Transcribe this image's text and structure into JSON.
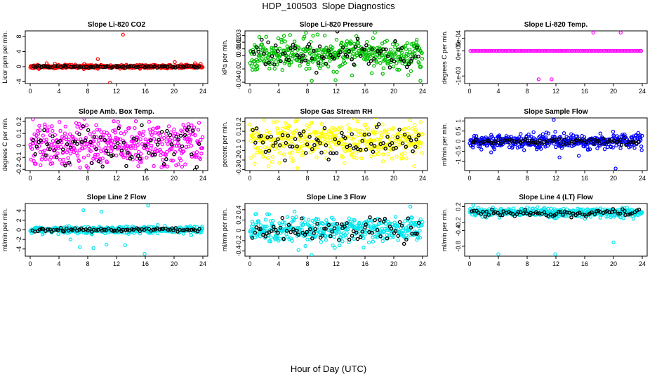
{
  "page": {
    "title": "HDP_100503  Slope Diagnostics",
    "xlabel": "Hour of Day (UTC)"
  },
  "chart_data": [
    {
      "type": "scatter",
      "title": "Slope Li-820 CO2",
      "ylabel": "Licor ppm per min.",
      "xlim": [
        0,
        24
      ],
      "xticks": [
        0,
        4,
        8,
        12,
        16,
        20,
        24
      ],
      "ylim": [
        -4.5,
        9.5
      ],
      "yticks": [
        -4,
        0,
        4,
        8
      ],
      "color": "#ff0000",
      "base": 0,
      "spread": 0.25,
      "n": 420,
      "seed": 11,
      "points_other": [
        {
          "x": 12.9,
          "y": 8.5
        },
        {
          "x": 11.1,
          "y": -4.3
        },
        {
          "x": 9.4,
          "y": 2.0
        },
        {
          "x": 20.1,
          "y": 1.2
        },
        {
          "x": 22.9,
          "y": 0.9
        },
        {
          "x": 7.5,
          "y": 0.7
        }
      ],
      "black": {
        "base": 0,
        "spread": 0.15,
        "n": 80
      }
    },
    {
      "type": "scatter",
      "title": "Slope Li-820 Pressure",
      "ylabel": "kPa per min.",
      "xlim": [
        0,
        24
      ],
      "xticks": [
        0,
        4,
        8,
        12,
        16,
        20,
        24
      ],
      "ylim": [
        -0.042,
        0.037
      ],
      "yticks": [
        -0.04,
        -0.02,
        0,
        0.01,
        0.02,
        0.03
      ],
      "color": "#00c000",
      "base": 0.003,
      "spread": 0.011,
      "n": 420,
      "seed": 23,
      "points_other": [
        {
          "x": 7.8,
          "y": 0.034
        },
        {
          "x": 8.6,
          "y": -0.038
        },
        {
          "x": 23.7,
          "y": -0.038
        },
        {
          "x": 14.2,
          "y": -0.03
        },
        {
          "x": 10.4,
          "y": 0.03
        }
      ],
      "black": {
        "base": 0.002,
        "spread": 0.01,
        "n": 80
      }
    },
    {
      "type": "scatter",
      "title": "Slope Li-820 Temp.",
      "ylabel": "degrees C per min.",
      "xlim": [
        0,
        24
      ],
      "xticks": [
        0,
        4,
        8,
        12,
        16,
        20,
        24
      ],
      "ylim": [
        -0.0013,
        0.0008
      ],
      "yticks": [
        -0.001,
        0,
        0.0005
      ],
      "ytick_labels": [
        "-1e-03",
        "0e+00",
        "5e-04"
      ],
      "color": "#ff00ff",
      "base": 0,
      "spread": 0.0,
      "n": 96,
      "seed": 31,
      "points_other": [
        {
          "x": 17.2,
          "y": 0.00073
        },
        {
          "x": 21.0,
          "y": 0.00073
        },
        {
          "x": 9.6,
          "y": -0.00113
        },
        {
          "x": 11.4,
          "y": -0.00113
        }
      ],
      "black": {
        "base": 0,
        "spread": 0,
        "n": 0
      }
    },
    {
      "type": "scatter",
      "title": "Slope Amb. Box Temp.",
      "ylabel": "degrees C per min.",
      "xlim": [
        0,
        24
      ],
      "xticks": [
        0,
        4,
        8,
        12,
        16,
        20,
        24
      ],
      "ylim": [
        -0.21,
        0.23
      ],
      "yticks": [
        -0.2,
        -0.1,
        0,
        0.1,
        0.2
      ],
      "color": "#ff00ff",
      "base": 0,
      "spread": 0.1,
      "n": 420,
      "seed": 41,
      "points_other": [],
      "black": {
        "base": 0,
        "spread": 0.09,
        "n": 80
      }
    },
    {
      "type": "scatter",
      "title": "Slope Gas Stream RH",
      "ylabel": "percent per min.",
      "xlim": [
        0,
        24
      ],
      "xticks": [
        0,
        4,
        8,
        12,
        16,
        20,
        24
      ],
      "ylim": [
        -0.31,
        0.24
      ],
      "yticks": [
        -0.3,
        -0.2,
        -0.1,
        0,
        0.1,
        0.2
      ],
      "color": "#ffff00",
      "base": 0,
      "spread": 0.1,
      "n": 420,
      "seed": 53,
      "points_other": [],
      "black": {
        "base": 0,
        "spread": 0.08,
        "n": 80
      }
    },
    {
      "type": "scatter",
      "title": "Slope Sample Flow",
      "ylabel": "ml/min per min.",
      "xlim": [
        0,
        24
      ],
      "xticks": [
        0,
        4,
        8,
        12,
        16,
        20,
        24
      ],
      "ylim": [
        -1.45,
        1.15
      ],
      "yticks": [
        -1.0,
        -0.5,
        0,
        0.5,
        1.0
      ],
      "color": "#0000ff",
      "base": 0,
      "spread": 0.18,
      "n": 420,
      "seed": 61,
      "points_other": [
        {
          "x": 11.7,
          "y": 1.05
        },
        {
          "x": 20.3,
          "y": -1.35
        },
        {
          "x": 3.0,
          "y": -0.55
        },
        {
          "x": 12.5,
          "y": -0.8
        }
      ],
      "black": {
        "base": 0,
        "spread": 0.08,
        "n": 80
      }
    },
    {
      "type": "scatter",
      "title": "Slope Line 2 Flow",
      "ylabel": "ml/min per min.",
      "xlim": [
        0,
        24
      ],
      "xticks": [
        0,
        4,
        8,
        12,
        16,
        20,
        24
      ],
      "ylim": [
        -5.5,
        5.5
      ],
      "yticks": [
        -4,
        -2,
        0,
        2,
        4
      ],
      "color": "#00e5ee",
      "base": 0,
      "spread": 0.35,
      "n": 420,
      "seed": 71,
      "points_other": [
        {
          "x": 16.4,
          "y": 5.1
        },
        {
          "x": 15.9,
          "y": -5.0
        },
        {
          "x": 7.4,
          "y": 4.1
        },
        {
          "x": 9.9,
          "y": 3.8
        },
        {
          "x": 13.2,
          "y": -3.2
        },
        {
          "x": 6.9,
          "y": -3.6
        },
        {
          "x": 8.8,
          "y": -3.8
        },
        {
          "x": 5.6,
          "y": -2.0
        },
        {
          "x": 10.6,
          "y": -3.1
        }
      ],
      "black": {
        "base": 0,
        "spread": 0.15,
        "n": 80
      }
    },
    {
      "type": "scatter",
      "title": "Slope Line 3 Flow",
      "ylabel": "ml/min per min.",
      "xlim": [
        0,
        24
      ],
      "xticks": [
        0,
        4,
        8,
        12,
        16,
        20,
        24
      ],
      "ylim": [
        -0.5,
        0.52
      ],
      "yticks": [
        -0.4,
        -0.2,
        0,
        0.2,
        0.4
      ],
      "color": "#00e5ee",
      "base": 0.02,
      "spread": 0.12,
      "n": 420,
      "seed": 83,
      "points_other": [
        {
          "x": 22.3,
          "y": 0.46
        },
        {
          "x": 8.6,
          "y": -0.48
        }
      ],
      "black": {
        "base": 0,
        "spread": 0.12,
        "n": 80
      }
    },
    {
      "type": "scatter",
      "title": "Slope Line 4 (LT) Flow",
      "ylabel": "ml/min per min.",
      "xlim": [
        0,
        24
      ],
      "xticks": [
        0,
        4,
        8,
        12,
        16,
        20,
        24
      ],
      "ylim": [
        -1.05,
        0.28
      ],
      "yticks": [
        -0.8,
        -0.4,
        -0.2,
        0.2
      ],
      "color": "#00e5ee",
      "base": 0.05,
      "spread": 0.06,
      "n": 420,
      "seed": 97,
      "points_other": [
        {
          "x": 4.0,
          "y": -1.0
        },
        {
          "x": 11.9,
          "y": -1.0
        },
        {
          "x": 20.0,
          "y": -0.7
        }
      ],
      "black": {
        "base": 0.05,
        "spread": 0.05,
        "n": 80
      }
    }
  ]
}
